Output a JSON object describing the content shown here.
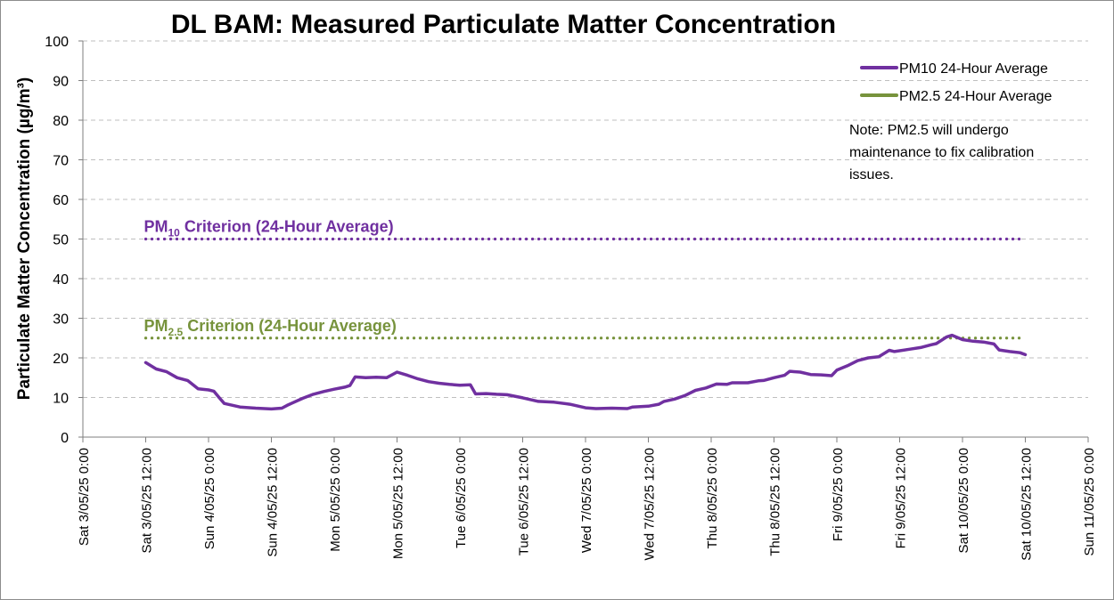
{
  "chart_data": {
    "type": "line",
    "title": "DL BAM: Measured Particulate Matter Concentration",
    "ylabel": "Particulate Matter Concentration (µg/m³)",
    "xlabel": "",
    "ylim": [
      0,
      100
    ],
    "y_ticks": [
      0,
      10,
      20,
      30,
      40,
      50,
      60,
      70,
      80,
      90,
      100
    ],
    "x_range": [
      "2025-05-03 00:00",
      "2025-05-11 00:00"
    ],
    "x_ticks": [
      "Sat 3/05/25 0:00",
      "Sat 3/05/25 12:00",
      "Sun 4/05/25 0:00",
      "Sun 4/05/25 12:00",
      "Mon 5/05/25 0:00",
      "Mon 5/05/25 12:00",
      "Tue 6/05/25 0:00",
      "Tue 6/05/25 12:00",
      "Wed 7/05/25 0:00",
      "Wed 7/05/25 12:00",
      "Thu 8/05/25 0:00",
      "Thu 8/05/25 12:00",
      "Fri 9/05/25 0:00",
      "Fri 9/05/25 12:00",
      "Sat 10/05/25 0:00",
      "Sat 10/05/25 12:00",
      "Sun 11/05/25 0:00"
    ],
    "grid": true,
    "legend_position": "top-right",
    "series": [
      {
        "name": "PM10 24-Hour Average",
        "color": "#7030a0",
        "points": [
          [
            "2025-05-03 12:00",
            18.8
          ],
          [
            "2025-05-03 14:00",
            17.2
          ],
          [
            "2025-05-03 16:00",
            16.5
          ],
          [
            "2025-05-03 18:00",
            15.0
          ],
          [
            "2025-05-03 20:00",
            14.3
          ],
          [
            "2025-05-03 22:00",
            12.2
          ],
          [
            "2025-05-04 00:00",
            11.9
          ],
          [
            "2025-05-04 01:00",
            11.6
          ],
          [
            "2025-05-04 02:00",
            10.0
          ],
          [
            "2025-05-04 03:00",
            8.5
          ],
          [
            "2025-05-04 06:00",
            7.6
          ],
          [
            "2025-05-04 09:00",
            7.3
          ],
          [
            "2025-05-04 12:00",
            7.1
          ],
          [
            "2025-05-04 14:00",
            7.3
          ],
          [
            "2025-05-04 15:00",
            8.0
          ],
          [
            "2025-05-04 16:00",
            8.6
          ],
          [
            "2025-05-04 18:00",
            9.8
          ],
          [
            "2025-05-04 20:00",
            10.8
          ],
          [
            "2025-05-04 22:00",
            11.5
          ],
          [
            "2025-05-05 00:00",
            12.1
          ],
          [
            "2025-05-05 02:00",
            12.6
          ],
          [
            "2025-05-05 03:00",
            13.0
          ],
          [
            "2025-05-05 04:00",
            15.2
          ],
          [
            "2025-05-05 06:00",
            15.0
          ],
          [
            "2025-05-05 08:00",
            15.1
          ],
          [
            "2025-05-05 10:00",
            15.0
          ],
          [
            "2025-05-05 12:00",
            16.4
          ],
          [
            "2025-05-05 14:00",
            15.6
          ],
          [
            "2025-05-05 16:00",
            14.7
          ],
          [
            "2025-05-05 18:00",
            14.0
          ],
          [
            "2025-05-05 20:00",
            13.6
          ],
          [
            "2025-05-05 22:00",
            13.3
          ],
          [
            "2025-05-06 00:00",
            13.1
          ],
          [
            "2025-05-06 02:00",
            13.2
          ],
          [
            "2025-05-06 03:00",
            10.9
          ],
          [
            "2025-05-06 05:00",
            11.0
          ],
          [
            "2025-05-06 07:00",
            10.8
          ],
          [
            "2025-05-06 09:00",
            10.7
          ],
          [
            "2025-05-06 12:00",
            9.9
          ],
          [
            "2025-05-06 15:00",
            9.0
          ],
          [
            "2025-05-06 18:00",
            8.8
          ],
          [
            "2025-05-06 21:00",
            8.3
          ],
          [
            "2025-05-07 00:00",
            7.4
          ],
          [
            "2025-05-07 02:00",
            7.2
          ],
          [
            "2025-05-07 05:00",
            7.3
          ],
          [
            "2025-05-07 08:00",
            7.2
          ],
          [
            "2025-05-07 09:00",
            7.6
          ],
          [
            "2025-05-07 12:00",
            7.8
          ],
          [
            "2025-05-07 14:00",
            8.3
          ],
          [
            "2025-05-07 15:00",
            9.0
          ],
          [
            "2025-05-07 17:00",
            9.6
          ],
          [
            "2025-05-07 19:00",
            10.5
          ],
          [
            "2025-05-07 21:00",
            11.8
          ],
          [
            "2025-05-07 23:00",
            12.4
          ],
          [
            "2025-05-08 01:00",
            13.4
          ],
          [
            "2025-05-08 03:00",
            13.3
          ],
          [
            "2025-05-08 04:00",
            13.7
          ],
          [
            "2025-05-08 07:00",
            13.7
          ],
          [
            "2025-05-08 09:00",
            14.2
          ],
          [
            "2025-05-08 10:00",
            14.3
          ],
          [
            "2025-05-08 12:00",
            15.0
          ],
          [
            "2025-05-08 14:00",
            15.6
          ],
          [
            "2025-05-08 15:00",
            16.6
          ],
          [
            "2025-05-08 17:00",
            16.4
          ],
          [
            "2025-05-08 19:00",
            15.8
          ],
          [
            "2025-05-08 21:00",
            15.7
          ],
          [
            "2025-05-08 23:00",
            15.5
          ],
          [
            "2025-05-09 00:00",
            16.9
          ],
          [
            "2025-05-09 02:00",
            18.0
          ],
          [
            "2025-05-09 04:00",
            19.3
          ],
          [
            "2025-05-09 06:00",
            20.0
          ],
          [
            "2025-05-09 08:00",
            20.3
          ],
          [
            "2025-05-09 10:00",
            21.9
          ],
          [
            "2025-05-09 11:00",
            21.6
          ],
          [
            "2025-05-09 14:00",
            22.2
          ],
          [
            "2025-05-09 16:00",
            22.6
          ],
          [
            "2025-05-09 18:00",
            23.3
          ],
          [
            "2025-05-09 19:00",
            23.6
          ],
          [
            "2025-05-09 21:00",
            25.3
          ],
          [
            "2025-05-09 22:00",
            25.7
          ],
          [
            "2025-05-10 00:00",
            24.6
          ],
          [
            "2025-05-10 02:00",
            24.2
          ],
          [
            "2025-05-10 04:00",
            24.0
          ],
          [
            "2025-05-10 06:00",
            23.5
          ],
          [
            "2025-05-10 07:00",
            22.0
          ],
          [
            "2025-05-10 09:00",
            21.6
          ],
          [
            "2025-05-10 11:00",
            21.3
          ],
          [
            "2025-05-10 12:00",
            20.8
          ]
        ]
      },
      {
        "name": "PM2.5 24-Hour Average",
        "color": "#77933c",
        "points": []
      }
    ],
    "criteria": [
      {
        "label_main": "PM",
        "label_sub": "10",
        "label_rest": " Criterion (24-Hour Average)",
        "value": 50,
        "color": "#7030a0",
        "x_start": "2025-05-03 12:00",
        "x_end": "2025-05-10 12:00"
      },
      {
        "label_main": "PM",
        "label_sub": "2.5",
        "label_rest": " Criterion (24-Hour Average)",
        "value": 25,
        "color": "#77933c",
        "x_start": "2025-05-03 12:00",
        "x_end": "2025-05-10 12:00"
      }
    ],
    "note_lines": [
      "Note: PM2.5 will undergo",
      "maintenance to fix calibration",
      "issues."
    ]
  }
}
